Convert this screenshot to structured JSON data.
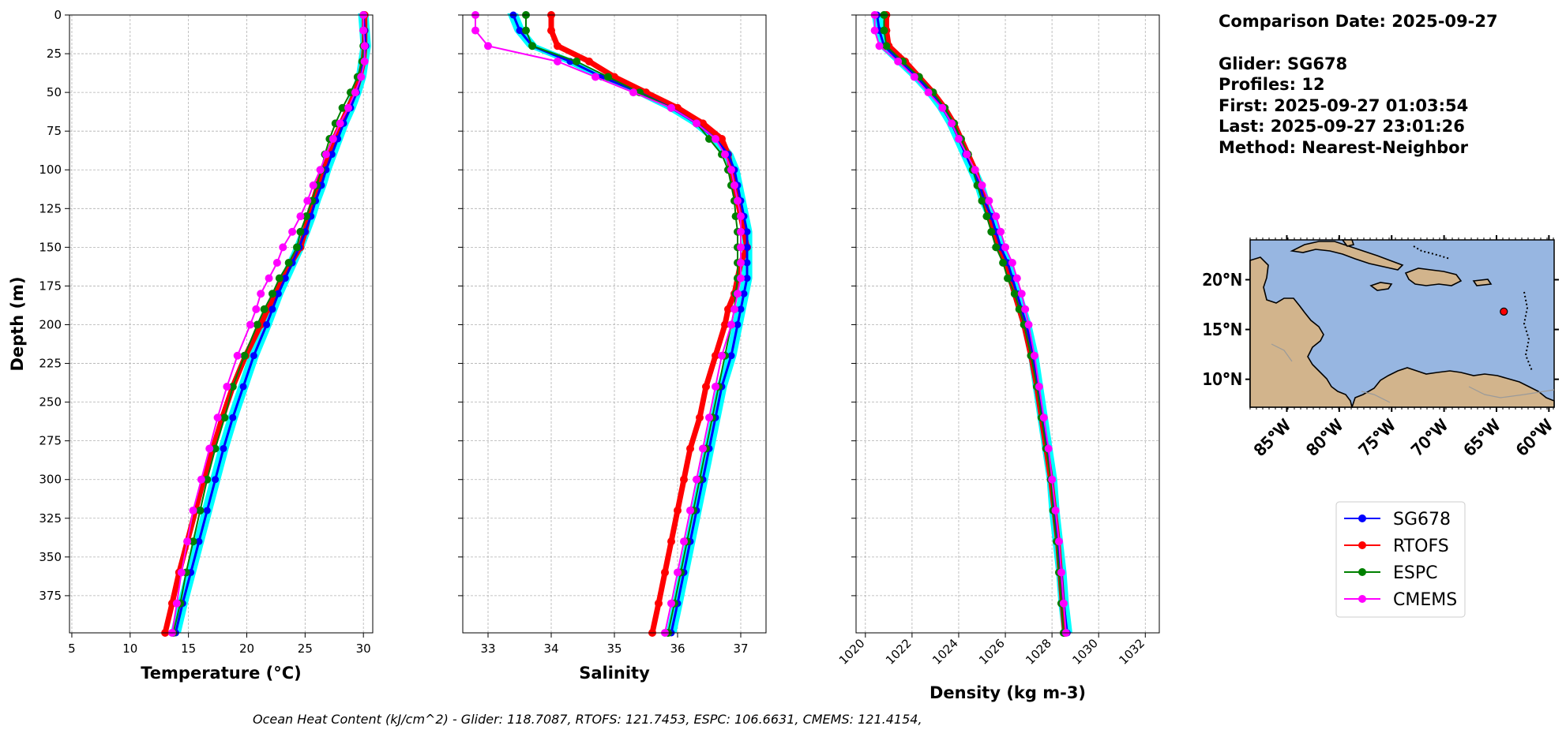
{
  "info": {
    "comparison": "Comparison Date: 2025-09-27",
    "glider": "Glider: SG678",
    "profiles": "Profiles: 12",
    "first": "First: 2025-09-27 01:03:54",
    "last": "Last: 2025-09-27 23:01:26",
    "method": "Method: Nearest-Neighbor"
  },
  "footer": "Ocean Heat Content (kJ/cm^2) - Glider: 118.7087,  RTOFS: 121.7453,  ESPC: 106.6631,  CMEMS: 121.4154,",
  "colors": {
    "glider": "#0000ff",
    "glider_raw": "#00ffff",
    "rtofs": "#ff0000",
    "espc": "#008000",
    "cmems": "#ff00ff",
    "ocean": "#97b6e1",
    "land": "#d2b48c"
  },
  "legend": [
    "SG678",
    "RTOFS",
    "ESPC",
    "CMEMS"
  ],
  "map": {
    "lat_labels": [
      "20°N",
      "15°N",
      "10°N"
    ],
    "lon_labels": [
      "85°W",
      "80°W",
      "75°W",
      "70°W",
      "65°W",
      "60°W"
    ],
    "glider_marker": {
      "lon": -64.3,
      "lat": 16.8
    }
  },
  "chart_data": [
    {
      "type": "line",
      "xlabel": "Temperature (°C)",
      "ylabel": "Depth (m)",
      "xlim": [
        4.8,
        30.8
      ],
      "ylim": [
        399,
        0
      ],
      "xticks": [
        "5",
        "10",
        "15",
        "20",
        "25",
        "30"
      ],
      "yticks": [
        "0",
        "25",
        "50",
        "75",
        "100",
        "125",
        "150",
        "175",
        "200",
        "225",
        "250",
        "275",
        "300",
        "325",
        "350",
        "375"
      ],
      "depth": [
        0,
        10,
        20,
        30,
        40,
        50,
        60,
        70,
        80,
        90,
        100,
        110,
        120,
        130,
        140,
        150,
        160,
        170,
        180,
        190,
        200,
        220,
        240,
        260,
        280,
        300,
        320,
        340,
        360,
        380,
        399
      ],
      "series": [
        {
          "name": "SG678",
          "values": [
            30.0,
            30.1,
            30.2,
            30.0,
            29.8,
            29.4,
            28.9,
            28.3,
            27.8,
            27.3,
            26.8,
            26.4,
            25.9,
            25.5,
            25.0,
            24.5,
            23.9,
            23.3,
            22.7,
            22.2,
            21.7,
            20.6,
            19.7,
            18.8,
            18.0,
            17.3,
            16.6,
            15.9,
            15.2,
            14.5,
            13.9
          ]
        },
        {
          "name": "RTOFS",
          "values": [
            30.1,
            30.1,
            30.1,
            30.0,
            29.7,
            29.3,
            28.7,
            28.1,
            27.5,
            27.0,
            26.5,
            26.1,
            25.7,
            25.3,
            25.0,
            24.6,
            23.8,
            23.1,
            22.4,
            21.8,
            21.2,
            19.9,
            18.8,
            17.9,
            17.1,
            16.3,
            15.6,
            14.9,
            14.2,
            13.6,
            13.0
          ]
        },
        {
          "name": "ESPC",
          "values": [
            30.0,
            30.0,
            30.0,
            29.9,
            29.5,
            28.9,
            28.2,
            27.6,
            27.1,
            26.7,
            26.4,
            26.0,
            25.6,
            25.1,
            24.6,
            24.3,
            23.6,
            22.8,
            22.2,
            21.5,
            20.9,
            19.8,
            18.8,
            18.1,
            17.3,
            16.6,
            16.0,
            15.4,
            14.8,
            14.3,
            13.7
          ]
        },
        {
          "name": "CMEMS",
          "values": [
            30.0,
            30.0,
            30.1,
            30.1,
            29.8,
            29.3,
            28.7,
            28.0,
            27.4,
            26.8,
            26.3,
            25.7,
            25.2,
            24.6,
            23.9,
            23.1,
            22.6,
            21.9,
            21.2,
            20.8,
            20.3,
            19.2,
            18.3,
            17.5,
            16.8,
            16.1,
            15.4,
            14.9,
            14.4,
            14.0,
            13.6
          ]
        }
      ]
    },
    {
      "type": "line",
      "xlabel": "Salinity",
      "xlim": [
        32.6,
        37.4
      ],
      "ylim": [
        399,
        0
      ],
      "xticks": [
        "33",
        "34",
        "35",
        "36",
        "37"
      ],
      "depth": [
        0,
        10,
        20,
        30,
        40,
        50,
        60,
        70,
        80,
        90,
        100,
        110,
        120,
        130,
        140,
        150,
        160,
        170,
        180,
        190,
        200,
        220,
        240,
        260,
        280,
        300,
        320,
        340,
        360,
        380,
        399
      ],
      "series": [
        {
          "name": "SG678",
          "values": [
            33.4,
            33.5,
            33.7,
            34.3,
            34.8,
            35.4,
            35.9,
            36.3,
            36.6,
            36.8,
            36.9,
            36.95,
            37.0,
            37.05,
            37.1,
            37.1,
            37.1,
            37.1,
            37.05,
            37.0,
            36.95,
            36.85,
            36.7,
            36.6,
            36.5,
            36.4,
            36.3,
            36.2,
            36.1,
            36.0,
            35.9
          ]
        },
        {
          "name": "RTOFS",
          "values": [
            34.0,
            34.0,
            34.1,
            34.6,
            35.0,
            35.5,
            36.0,
            36.4,
            36.7,
            36.8,
            36.85,
            36.9,
            36.95,
            37.0,
            37.05,
            37.1,
            37.0,
            36.95,
            36.9,
            36.8,
            36.75,
            36.6,
            36.45,
            36.35,
            36.2,
            36.1,
            36.0,
            35.9,
            35.8,
            35.7,
            35.6
          ]
        },
        {
          "name": "ESPC",
          "values": [
            33.6,
            33.6,
            33.7,
            34.4,
            34.9,
            35.4,
            35.9,
            36.3,
            36.5,
            36.7,
            36.8,
            36.85,
            36.9,
            36.92,
            36.95,
            36.95,
            36.95,
            36.95,
            36.92,
            36.9,
            36.85,
            36.75,
            36.65,
            36.55,
            36.45,
            36.35,
            36.25,
            36.15,
            36.05,
            35.95,
            35.85
          ]
        },
        {
          "name": "CMEMS",
          "values": [
            32.8,
            32.8,
            33.0,
            34.1,
            34.7,
            35.3,
            35.9,
            36.3,
            36.6,
            36.75,
            36.85,
            36.9,
            36.95,
            37.0,
            37.0,
            37.0,
            37.0,
            37.0,
            36.95,
            36.9,
            36.85,
            36.7,
            36.6,
            36.5,
            36.4,
            36.3,
            36.2,
            36.1,
            36.0,
            35.9,
            35.8
          ]
        }
      ]
    },
    {
      "type": "line",
      "xlabel": "Density (kg m-3)",
      "xlim": [
        1019.6,
        1032.6
      ],
      "ylim": [
        399,
        0
      ],
      "xticks": [
        "1020",
        "1022",
        "1024",
        "1026",
        "1028",
        "1030",
        "1032"
      ],
      "depth": [
        0,
        10,
        20,
        30,
        40,
        50,
        60,
        70,
        80,
        90,
        100,
        110,
        120,
        130,
        140,
        150,
        160,
        170,
        180,
        190,
        200,
        220,
        240,
        260,
        280,
        300,
        320,
        340,
        360,
        380,
        399
      ],
      "series": [
        {
          "name": "SG678",
          "values": [
            1020.5,
            1020.6,
            1020.8,
            1021.5,
            1022.2,
            1022.8,
            1023.3,
            1023.7,
            1024.0,
            1024.3,
            1024.6,
            1024.9,
            1025.1,
            1025.4,
            1025.6,
            1025.8,
            1026.1,
            1026.3,
            1026.5,
            1026.7,
            1026.9,
            1027.2,
            1027.4,
            1027.6,
            1027.8,
            1028.0,
            1028.1,
            1028.25,
            1028.4,
            1028.5,
            1028.65
          ]
        },
        {
          "name": "RTOFS",
          "values": [
            1020.9,
            1020.9,
            1021.0,
            1021.7,
            1022.3,
            1022.9,
            1023.4,
            1023.8,
            1024.1,
            1024.4,
            1024.7,
            1024.9,
            1025.1,
            1025.3,
            1025.5,
            1025.7,
            1026.0,
            1026.2,
            1026.4,
            1026.6,
            1026.8,
            1027.1,
            1027.35,
            1027.55,
            1027.75,
            1027.95,
            1028.1,
            1028.25,
            1028.35,
            1028.45,
            1028.55
          ]
        },
        {
          "name": "ESPC",
          "values": [
            1020.8,
            1020.8,
            1020.9,
            1021.6,
            1022.3,
            1022.9,
            1023.4,
            1023.8,
            1024.1,
            1024.4,
            1024.6,
            1024.8,
            1025.0,
            1025.2,
            1025.4,
            1025.6,
            1025.9,
            1026.1,
            1026.4,
            1026.6,
            1026.8,
            1027.1,
            1027.35,
            1027.55,
            1027.75,
            1027.95,
            1028.05,
            1028.2,
            1028.3,
            1028.4,
            1028.5
          ]
        },
        {
          "name": "CMEMS",
          "values": [
            1020.4,
            1020.4,
            1020.6,
            1021.4,
            1022.1,
            1022.7,
            1023.3,
            1023.7,
            1024.0,
            1024.35,
            1024.7,
            1025.0,
            1025.3,
            1025.6,
            1025.8,
            1026.0,
            1026.3,
            1026.5,
            1026.7,
            1026.85,
            1027.0,
            1027.25,
            1027.45,
            1027.65,
            1027.85,
            1028.0,
            1028.15,
            1028.3,
            1028.4,
            1028.5,
            1028.6
          ]
        }
      ]
    }
  ]
}
